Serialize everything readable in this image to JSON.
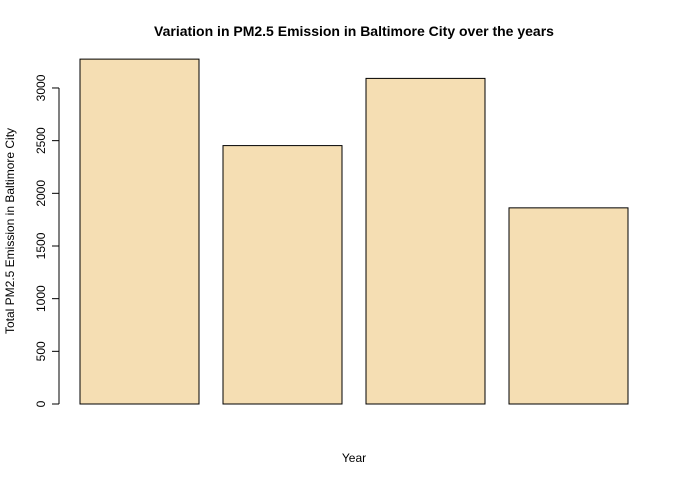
{
  "chart_data": {
    "type": "bar",
    "title": "Variation in PM2.5 Emission in Baltimore City over the years",
    "xlabel": "Year",
    "ylabel": "Total PM2.5 Emission in Baltimore City",
    "categories": [
      "",
      "",
      "",
      ""
    ],
    "values": [
      3274,
      2453,
      3091,
      1862
    ],
    "ylim": [
      0,
      3300
    ],
    "yticks": [
      0,
      500,
      1000,
      1500,
      2000,
      2500,
      3000
    ],
    "bar_color": "#f5deb3",
    "bar_stroke": "#000000",
    "grid": false,
    "legend": "none"
  }
}
